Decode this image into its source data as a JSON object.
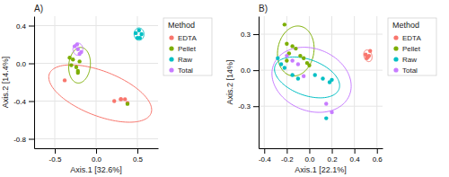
{
  "chart_data": [
    {
      "type": "scatter",
      "title": "A)",
      "x_label": "Axis.1  [32.6%]",
      "y_label": "Axis.2  [14.4%]",
      "xlim": [
        -0.75,
        0.75
      ],
      "ylim": [
        -0.9,
        0.5
      ],
      "xticks": [
        -0.5,
        {
          "value": 0.0,
          "label": "0.0"
        },
        0.5
      ],
      "yticks": [
        -0.8,
        -0.4,
        {
          "value": 0.0,
          "label": "0.0"
        },
        0.4
      ],
      "grid": true,
      "legend": "right",
      "legend_title": "Method",
      "series": [
        {
          "name": "EDTA",
          "color": "#f8766d",
          "x": [
            -0.38,
            0.22,
            0.3,
            0.38,
            0.3,
            0.35
          ],
          "y": [
            -0.18,
            -0.4,
            -0.38,
            -0.42,
            -0.38,
            -0.38
          ],
          "ellipse": {
            "cx": 0.05,
            "cy": -0.32,
            "width": 1.3,
            "height": 0.48,
            "angle": -18
          }
        },
        {
          "name": "Pellet",
          "color": "#7cae00",
          "x": [
            -0.32,
            -0.28,
            -0.3,
            -0.2,
            -0.24,
            -0.22,
            -0.22,
            0.38
          ],
          "y": [
            0.06,
            0.04,
            -0.02,
            0.02,
            -0.04,
            -0.1,
            -0.08,
            -0.43
          ],
          "ellipse": {
            "cx": -0.2,
            "cy": -0.02,
            "width": 0.26,
            "height": 0.38,
            "angle": -8
          }
        },
        {
          "name": "Raw",
          "color": "#00bfc4",
          "x": [
            0.48,
            0.52,
            0.55,
            0.53,
            0.5
          ],
          "y": [
            0.32,
            0.35,
            0.31,
            0.27,
            0.27
          ],
          "ellipse": {
            "cx": 0.52,
            "cy": 0.31,
            "width": 0.12,
            "height": 0.13,
            "angle": 5
          }
        },
        {
          "name": "Total",
          "color": "#c77cff",
          "x": [
            -0.26,
            -0.22,
            -0.18,
            -0.2,
            -0.23
          ],
          "y": [
            0.18,
            0.15,
            0.12,
            0.1,
            0.2
          ],
          "ellipse": {
            "cx": -0.22,
            "cy": 0.15,
            "width": 0.12,
            "height": 0.13,
            "angle": 0
          }
        }
      ]
    },
    {
      "type": "scatter",
      "title": "B)",
      "x_label": "Axis.1  [22.1%]",
      "y_label": "Axis.2  [14%]",
      "xlim": [
        -0.45,
        0.65
      ],
      "ylim": [
        -0.65,
        0.45
      ],
      "xticks": [
        -0.4,
        -0.2,
        {
          "value": 0.0,
          "label": "0.0"
        },
        0.2,
        0.4,
        0.6
      ],
      "yticks": [
        -0.3,
        {
          "value": 0.0,
          "label": "0.0"
        },
        0.3
      ],
      "grid": true,
      "legend": "right",
      "legend_title": "Method",
      "series": [
        {
          "name": "EDTA",
          "color": "#f8766d",
          "x": [
            0.5,
            0.54,
            0.52,
            0.53,
            0.51
          ],
          "y": [
            0.13,
            0.16,
            0.11,
            0.12,
            0.1
          ],
          "ellipse": {
            "cx": 0.52,
            "cy": 0.12,
            "width": 0.07,
            "height": 0.1,
            "angle": 20
          }
        },
        {
          "name": "Pellet",
          "color": "#7cae00",
          "x": [
            -0.22,
            -0.2,
            -0.15,
            -0.12,
            -0.18,
            -0.08,
            -0.05,
            -0.2,
            -0.02,
            0.0
          ],
          "y": [
            0.38,
            0.22,
            0.2,
            0.18,
            0.14,
            0.12,
            0.1,
            0.08,
            0.06,
            0.04
          ],
          "ellipse": {
            "cx": -0.12,
            "cy": 0.16,
            "width": 0.32,
            "height": 0.42,
            "angle": -12
          }
        },
        {
          "name": "Raw",
          "color": "#00bfc4",
          "x": [
            -0.28,
            -0.25,
            -0.22,
            -0.15,
            -0.1,
            0.05,
            0.12,
            0.18,
            0.2,
            0.15
          ],
          "y": [
            0.1,
            0.05,
            0.02,
            -0.04,
            -0.07,
            -0.04,
            -0.07,
            -0.1,
            -0.08,
            -0.4
          ],
          "ellipse": {
            "cx": -0.02,
            "cy": -0.06,
            "width": 0.6,
            "height": 0.3,
            "angle": -18
          }
        },
        {
          "name": "Total",
          "color": "#c77cff",
          "x": [
            -0.2,
            -0.15,
            -0.1,
            -0.05,
            0.15,
            0.2
          ],
          "y": [
            0.12,
            0.08,
            0.05,
            -0.05,
            -0.28,
            -0.35
          ],
          "ellipse": {
            "cx": 0.02,
            "cy": -0.08,
            "width": 0.72,
            "height": 0.52,
            "angle": -18
          }
        }
      ]
    }
  ]
}
